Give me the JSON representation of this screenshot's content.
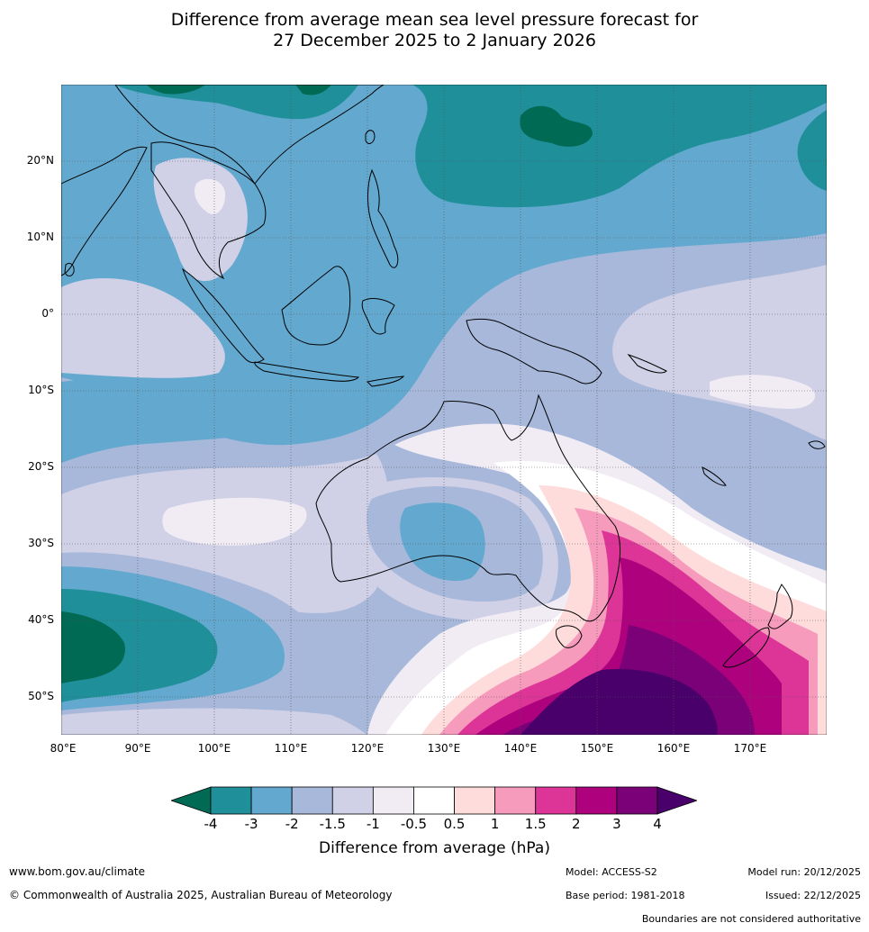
{
  "title": {
    "line1": "Difference from average mean sea level pressure forecast for",
    "line2": "27 December 2025 to 2 January 2026"
  },
  "map": {
    "lat_labels": [
      "20°N",
      "10°N",
      "0°",
      "10°S",
      "20°S",
      "30°S",
      "40°S",
      "50°S"
    ],
    "lon_labels": [
      "80°E",
      "90°E",
      "100°E",
      "110°E",
      "120°E",
      "130°E",
      "140°E",
      "150°E",
      "160°E",
      "170°E"
    ],
    "lon_range": [
      80,
      180
    ],
    "lat_range": [
      -55,
      30
    ],
    "regions": [
      {
        "name": "central-australia-south-coast",
        "value": "-3 to -2"
      },
      {
        "name": "tasman-sea-south-east",
        "value": ">4"
      },
      {
        "name": "southern-indian-ocean",
        "value": "<-4"
      },
      {
        "name": "north-west-pacific",
        "value": "-4 to -3"
      }
    ]
  },
  "colorbar": {
    "ticks": [
      "-4",
      "-3",
      "-2",
      "-1.5",
      "-1",
      "-0.5",
      "0.5",
      "1",
      "1.5",
      "2",
      "3",
      "4"
    ],
    "colors": [
      "#006a55",
      "#1f9099",
      "#63a9cf",
      "#a8b8da",
      "#d0d0e6",
      "#f1ecf4",
      "#ffffff",
      "#ffdcdc",
      "#f69bbc",
      "#dd3497",
      "#ae017e",
      "#7a0177",
      "#49006a"
    ],
    "title": "Difference from average (hPa)"
  },
  "footer": {
    "url": "www.bom.gov.au/climate",
    "copyright": "© Commonwealth of Australia 2025, Australian Bureau of Meteorology",
    "model": "Model: ACCESS-S2",
    "base_period": "Base period: 1981-2018",
    "model_run": "Model run: 20/12/2025",
    "issued": "Issued: 22/12/2025",
    "disclaimer": "Boundaries are not considered authoritative"
  }
}
